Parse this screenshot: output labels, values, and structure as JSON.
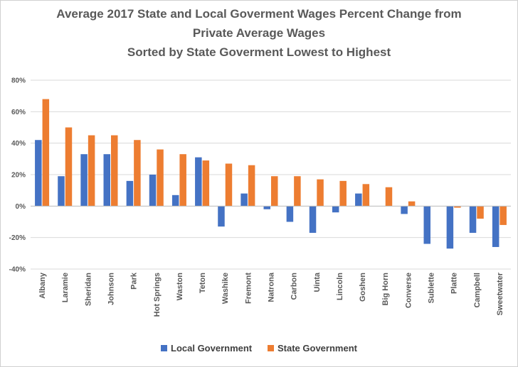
{
  "chart_data": {
    "type": "bar",
    "title_lines": [
      "Average 2017 State and Local Goverment Wages Percent Change from",
      "Private Average Wages",
      "Sorted by State Goverment Lowest to Highest"
    ],
    "categories": [
      "Albany",
      "Laramie",
      "Sheridan",
      "Johnson",
      "Park",
      "Hot Springs",
      "Waston",
      "Teton",
      "Washike",
      "Fremont",
      "Natrona",
      "Carbon",
      "Uinta",
      "Lincoln",
      "Goshen",
      "Big Horn",
      "Converse",
      "Sublette",
      "Platte",
      "Campbell",
      "Sweetwater"
    ],
    "series": [
      {
        "name": "Local Government",
        "color": "#4472c4",
        "values": [
          42,
          19,
          33,
          33,
          16,
          20,
          7,
          31,
          -13,
          8,
          -2,
          -10,
          -17,
          -4,
          8,
          0,
          -5,
          -24,
          -27,
          -17,
          -26
        ]
      },
      {
        "name": "State Government",
        "color": "#ed7d31",
        "values": [
          68,
          50,
          45,
          45,
          42,
          36,
          33,
          29,
          27,
          26,
          19,
          19,
          17,
          16,
          14,
          12,
          3,
          0,
          -1,
          -8,
          -12
        ]
      }
    ],
    "yticks": [
      "80%",
      "60%",
      "40%",
      "20%",
      "0%",
      "-20%",
      "-40%"
    ],
    "ytick_values": [
      80,
      60,
      40,
      20,
      0,
      -20,
      -40
    ],
    "ylim": [
      -40,
      80
    ],
    "grid": true,
    "legend_position": "bottom"
  }
}
